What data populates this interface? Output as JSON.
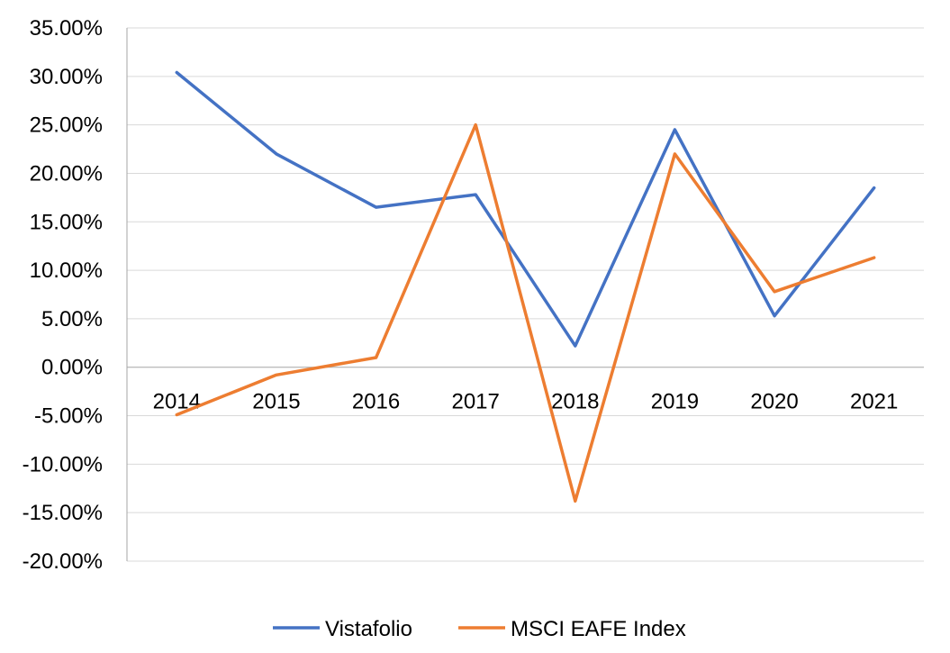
{
  "chart_data": {
    "type": "line",
    "title": "",
    "xlabel": "",
    "ylabel": "",
    "categories": [
      "2014",
      "2015",
      "2016",
      "2017",
      "2018",
      "2019",
      "2020",
      "2021"
    ],
    "series": [
      {
        "name": "Vistafolio",
        "color": "#4472c4",
        "values": [
          30.4,
          22.0,
          16.5,
          17.8,
          2.2,
          24.5,
          5.3,
          18.5
        ]
      },
      {
        "name": "MSCI EAFE Index",
        "color": "#ed7d31",
        "values": [
          -4.9,
          -0.8,
          1.0,
          25.0,
          -13.8,
          22.0,
          7.8,
          11.3
        ]
      }
    ],
    "ylim": [
      -20,
      35
    ],
    "ytick_step": 5,
    "ytick_labels": [
      "35.00%",
      "30.00%",
      "25.00%",
      "20.00%",
      "15.00%",
      "10.00%",
      "5.00%",
      "0.00%",
      "-5.00%",
      "-10.00%",
      "-15.00%",
      "-20.00%"
    ],
    "grid": true,
    "legend_position": "bottom"
  }
}
